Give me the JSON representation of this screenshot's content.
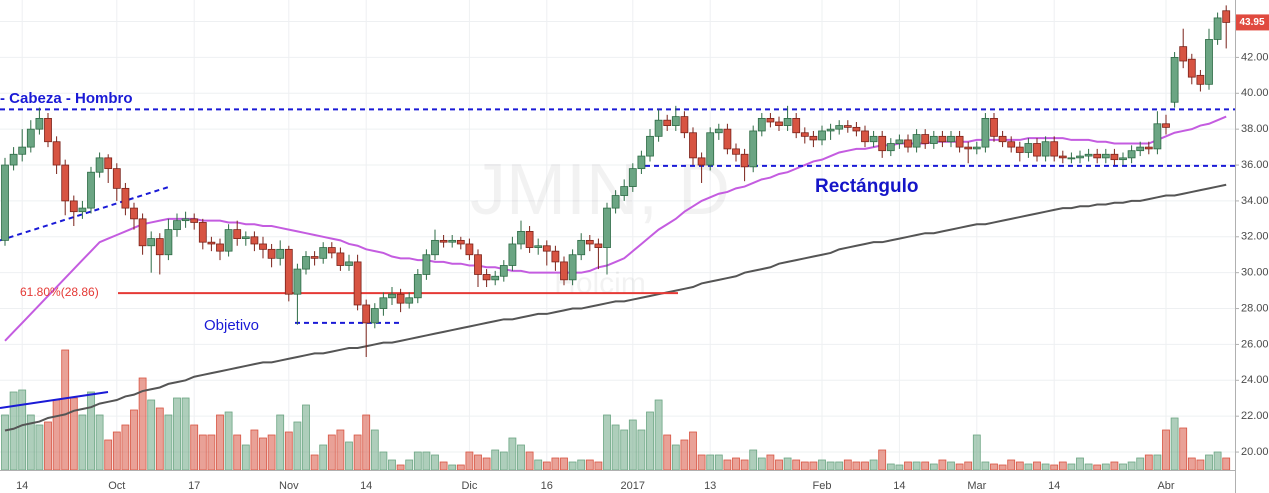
{
  "chart_data": {
    "type": "candlestick",
    "watermark": "JMIN, D",
    "watermark_sub": "Holcim",
    "head_shoulders_label": "- Cabeza - Hombro",
    "rectangle_label": "Rectángulo",
    "target_label": "Objetivo",
    "fib_label": "61.80%(28.86)",
    "last_price": 43.95,
    "up_color": "#6ba583",
    "down_color": "#d75442",
    "ylim": [
      19.0,
      45.2
    ],
    "yticks": [
      {
        "value": 20,
        "label": "20.00"
      },
      {
        "value": 22,
        "label": "22.00"
      },
      {
        "value": 24,
        "label": "24.00"
      },
      {
        "value": 26,
        "label": "26.00"
      },
      {
        "value": 28,
        "label": "28.00"
      },
      {
        "value": 30,
        "label": "30.00"
      },
      {
        "value": 32,
        "label": "32.00"
      },
      {
        "value": 34,
        "label": "34.00"
      },
      {
        "value": 36,
        "label": "36.00"
      },
      {
        "value": 38,
        "label": "38.00"
      },
      {
        "value": 40,
        "label": "40.00"
      },
      {
        "value": 42,
        "label": "42.00"
      },
      {
        "value": 44,
        "label": "44.00"
      }
    ],
    "grid": true,
    "vlim": [
      0,
      130
    ],
    "categories": [
      null,
      null,
      "14",
      null,
      null,
      null,
      null,
      null,
      null,
      null,
      null,
      null,
      null,
      "Oct",
      null,
      null,
      null,
      null,
      null,
      null,
      null,
      null,
      "17",
      null,
      null,
      null,
      null,
      null,
      null,
      null,
      null,
      null,
      null,
      "Nov",
      null,
      null,
      null,
      null,
      null,
      null,
      null,
      null,
      "14",
      null,
      null,
      null,
      null,
      null,
      null,
      null,
      null,
      null,
      null,
      null,
      "Dic",
      null,
      null,
      null,
      null,
      null,
      null,
      null,
      null,
      "16",
      null,
      null,
      null,
      null,
      null,
      null,
      null,
      null,
      null,
      "2017",
      null,
      null,
      null,
      null,
      null,
      null,
      null,
      null,
      "13",
      null,
      null,
      null,
      null,
      null,
      null,
      null,
      null,
      null,
      null,
      null,
      null,
      "Feb",
      null,
      null,
      null,
      null,
      null,
      null,
      null,
      null,
      "14",
      null,
      null,
      null,
      null,
      null,
      null,
      null,
      null,
      "Mar",
      null,
      null,
      null,
      null,
      null,
      null,
      null,
      null,
      "14",
      null,
      null,
      null,
      null,
      null,
      null,
      null,
      null,
      null,
      null,
      null,
      null,
      "Abr",
      null,
      null,
      null,
      null,
      null,
      null,
      null
    ],
    "open": [
      31.8,
      36.0,
      36.6,
      37.0,
      38.0,
      38.6,
      37.3,
      36.0,
      34.0,
      33.4,
      33.6,
      35.6,
      36.4,
      35.8,
      34.7,
      33.6,
      33.0,
      31.5,
      31.9,
      31.0,
      32.4,
      32.9,
      33.0,
      32.8,
      31.7,
      31.6,
      31.2,
      32.4,
      31.9,
      32.0,
      31.6,
      31.3,
      30.8,
      31.3,
      28.8,
      30.2,
      30.9,
      30.8,
      31.4,
      31.1,
      30.4,
      30.6,
      28.2,
      27.2,
      28.0,
      28.6,
      28.8,
      28.3,
      28.6,
      29.9,
      31.0,
      31.8,
      31.7,
      31.8,
      31.6,
      31.0,
      29.9,
      29.6,
      29.8,
      30.4,
      31.6,
      32.3,
      31.4,
      31.5,
      31.2,
      30.6,
      29.6,
      31.0,
      31.8,
      31.6,
      31.4,
      33.6,
      34.3,
      34.8,
      35.8,
      36.5,
      37.6,
      38.5,
      38.2,
      38.7,
      37.8,
      36.4,
      36.0,
      37.8,
      38.0,
      36.9,
      36.6,
      35.9,
      37.9,
      38.6,
      38.4,
      38.2,
      38.6,
      37.8,
      37.6,
      37.4,
      37.9,
      38.0,
      38.2,
      38.1,
      37.9,
      37.3,
      37.6,
      36.8,
      37.2,
      37.4,
      37.0,
      37.7,
      37.2,
      37.6,
      37.3,
      37.6,
      37.0,
      36.9,
      37.0,
      38.6,
      37.6,
      37.3,
      37.0,
      36.7,
      37.2,
      36.5,
      37.3,
      36.5,
      36.4,
      36.4,
      36.5,
      36.6,
      36.4,
      36.6,
      36.3,
      36.4,
      36.8,
      37.0,
      36.9,
      38.3,
      39.5,
      42.6,
      41.9,
      41.0,
      40.5,
      43.0,
      44.6
    ],
    "high": [
      36.4,
      37.0,
      38.0,
      38.5,
      39.2,
      38.9,
      37.6,
      36.3,
      34.3,
      34.0,
      35.9,
      36.7,
      36.6,
      36.1,
      35.0,
      33.9,
      33.3,
      32.3,
      32.2,
      33.0,
      33.3,
      33.4,
      33.3,
      33.0,
      32.0,
      31.9,
      32.7,
      32.9,
      32.3,
      32.3,
      32.0,
      31.6,
      31.8,
      31.5,
      30.5,
      31.2,
      31.2,
      31.7,
      31.7,
      31.4,
      31.0,
      31.0,
      28.5,
      28.3,
      28.9,
      29.2,
      29.1,
      28.9,
      30.2,
      31.3,
      32.4,
      32.1,
      32.1,
      32.0,
      31.9,
      31.3,
      30.2,
      30.1,
      30.7,
      32.0,
      32.9,
      32.6,
      31.9,
      31.8,
      31.5,
      30.9,
      31.3,
      32.2,
      32.1,
      31.9,
      33.9,
      34.6,
      35.2,
      36.1,
      36.8,
      38.0,
      39.1,
      38.8,
      39.3,
      39.0,
      38.1,
      36.7,
      38.1,
      38.3,
      38.3,
      37.2,
      36.9,
      38.2,
      38.9,
      38.9,
      38.7,
      39.3,
      38.9,
      38.1,
      37.9,
      38.2,
      38.3,
      38.5,
      38.5,
      38.4,
      38.2,
      37.9,
      37.9,
      37.5,
      37.7,
      37.7,
      38.0,
      38.0,
      37.9,
      37.9,
      37.9,
      37.9,
      37.3,
      37.3,
      38.9,
      38.9,
      37.9,
      37.6,
      37.3,
      37.5,
      37.5,
      37.6,
      37.6,
      36.8,
      36.7,
      36.8,
      36.9,
      36.9,
      36.9,
      36.9,
      36.7,
      37.1,
      37.3,
      37.3,
      39.0,
      38.8,
      42.3,
      43.6,
      42.2,
      41.3,
      43.6,
      44.5,
      44.9
    ],
    "low": [
      31.5,
      35.7,
      36.2,
      36.7,
      37.7,
      37.0,
      35.5,
      33.2,
      32.6,
      33.0,
      33.3,
      35.3,
      35.0,
      34.0,
      33.2,
      32.4,
      31.0,
      30.0,
      29.9,
      30.7,
      32.0,
      32.5,
      32.4,
      31.3,
      31.2,
      30.7,
      30.9,
      31.5,
      31.5,
      31.2,
      30.8,
      30.3,
      30.4,
      28.4,
      27.1,
      29.9,
      30.4,
      30.5,
      30.8,
      30.1,
      30.1,
      27.9,
      25.3,
      26.9,
      27.6,
      28.2,
      27.8,
      28.0,
      28.3,
      29.6,
      30.7,
      31.4,
      31.4,
      31.3,
      30.7,
      29.2,
      29.2,
      29.3,
      29.5,
      30.1,
      31.3,
      31.1,
      31.0,
      30.4,
      30.1,
      29.3,
      29.3,
      30.7,
      31.2,
      30.2,
      29.9,
      33.3,
      34.0,
      34.5,
      35.5,
      36.2,
      37.3,
      37.9,
      37.9,
      37.5,
      36.0,
      35.0,
      35.7,
      37.4,
      36.6,
      36.2,
      35.1,
      35.6,
      37.6,
      38.1,
      37.9,
      37.9,
      37.5,
      37.2,
      37.0,
      37.1,
      37.4,
      37.7,
      37.8,
      37.6,
      37.0,
      37.0,
      36.4,
      36.5,
      36.9,
      36.7,
      36.7,
      36.9,
      36.9,
      37.0,
      37.0,
      36.7,
      36.1,
      36.6,
      36.7,
      37.3,
      37.0,
      36.7,
      36.2,
      36.4,
      36.2,
      36.2,
      36.2,
      36.1,
      36.1,
      36.1,
      36.2,
      36.1,
      36.1,
      36.0,
      36.0,
      36.1,
      36.5,
      36.6,
      36.6,
      37.7,
      39.2,
      41.4,
      40.5,
      40.1,
      40.2,
      42.7,
      42.5
    ],
    "close": [
      36.0,
      36.6,
      37.0,
      38.0,
      38.6,
      37.3,
      36.0,
      34.0,
      33.4,
      33.6,
      35.6,
      36.4,
      35.8,
      34.7,
      33.6,
      33.0,
      31.5,
      31.9,
      31.0,
      32.4,
      32.9,
      33.0,
      32.8,
      31.7,
      31.6,
      31.2,
      32.4,
      31.9,
      32.0,
      31.6,
      31.3,
      30.8,
      31.3,
      28.8,
      30.2,
      30.9,
      30.8,
      31.4,
      31.1,
      30.4,
      30.6,
      28.2,
      27.2,
      28.0,
      28.6,
      28.8,
      28.3,
      28.6,
      29.9,
      31.0,
      31.8,
      31.7,
      31.8,
      31.6,
      31.0,
      29.9,
      29.6,
      29.8,
      30.4,
      31.6,
      32.3,
      31.4,
      31.5,
      31.2,
      30.6,
      29.6,
      31.0,
      31.8,
      31.6,
      31.4,
      33.6,
      34.3,
      34.8,
      35.8,
      36.5,
      37.6,
      38.5,
      38.2,
      38.7,
      37.8,
      36.4,
      36.0,
      37.8,
      38.0,
      36.9,
      36.6,
      35.9,
      37.9,
      38.6,
      38.4,
      38.2,
      38.6,
      37.8,
      37.6,
      37.4,
      37.9,
      38.0,
      38.2,
      38.1,
      37.9,
      37.3,
      37.6,
      36.8,
      37.2,
      37.4,
      37.0,
      37.7,
      37.2,
      37.6,
      37.3,
      37.6,
      37.0,
      36.9,
      37.0,
      38.6,
      37.6,
      37.3,
      37.0,
      36.7,
      37.2,
      36.5,
      37.3,
      36.5,
      36.4,
      36.4,
      36.5,
      36.6,
      36.4,
      36.6,
      36.3,
      36.4,
      36.8,
      37.0,
      36.9,
      38.3,
      38.1,
      42.0,
      41.8,
      40.9,
      40.5,
      43.0,
      44.2,
      43.95
    ],
    "volume": [
      55,
      78,
      80,
      55,
      45,
      48,
      70,
      120,
      72,
      55,
      78,
      55,
      30,
      38,
      45,
      60,
      92,
      70,
      62,
      55,
      72,
      72,
      45,
      35,
      35,
      55,
      58,
      35,
      25,
      40,
      32,
      35,
      55,
      38,
      48,
      65,
      15,
      25,
      35,
      40,
      28,
      35,
      55,
      40,
      18,
      10,
      5,
      10,
      18,
      18,
      15,
      8,
      5,
      5,
      18,
      15,
      12,
      20,
      18,
      32,
      25,
      18,
      10,
      8,
      12,
      12,
      8,
      10,
      10,
      8,
      55,
      45,
      40,
      50,
      40,
      58,
      70,
      35,
      25,
      30,
      38,
      15,
      15,
      15,
      10,
      12,
      10,
      20,
      12,
      15,
      10,
      12,
      10,
      8,
      8,
      10,
      8,
      8,
      10,
      8,
      8,
      10,
      20,
      6,
      5,
      8,
      8,
      8,
      6,
      10,
      8,
      6,
      8,
      35,
      8,
      6,
      5,
      10,
      8,
      6,
      8,
      6,
      5,
      8,
      6,
      12,
      6,
      5,
      6,
      8,
      6,
      8,
      12,
      15,
      15,
      40,
      52,
      42,
      12,
      10,
      15,
      18,
      12
    ],
    "series": [
      {
        "color": "#c45ce0",
        "values": [
          26.2,
          26.7,
          27.2,
          27.7,
          28.2,
          28.7,
          29.2,
          29.7,
          30.2,
          30.7,
          31.2,
          31.7,
          31.9,
          32.1,
          32.3,
          32.5,
          32.7,
          32.8,
          32.9,
          33.0,
          33.0,
          33.0,
          33.0,
          32.9,
          32.9,
          32.9,
          32.8,
          32.8,
          32.7,
          32.7,
          32.6,
          32.6,
          32.5,
          32.4,
          32.3,
          32.2,
          32.1,
          32.0,
          31.9,
          31.8,
          31.6,
          31.5,
          31.3,
          31.2,
          31.1,
          30.9,
          30.8,
          30.8,
          30.7,
          30.7,
          30.6,
          30.6,
          30.5,
          30.5,
          30.4,
          30.4,
          30.3,
          30.3,
          30.2,
          30.1,
          30.1,
          30.0,
          30.0,
          30.0,
          30.0,
          30.0,
          30.0,
          30.0,
          30.1,
          30.3,
          30.4,
          30.6,
          30.8,
          31.2,
          31.6,
          32.0,
          32.4,
          32.7,
          33.0,
          33.4,
          33.7,
          34.0,
          34.2,
          34.4,
          34.5,
          34.7,
          34.8,
          35.0,
          35.2,
          35.3,
          35.5,
          35.6,
          35.8,
          36.0,
          36.2,
          36.3,
          36.5,
          36.7,
          36.8,
          36.9,
          36.9,
          37.0,
          37.1,
          37.1,
          37.2,
          37.2,
          37.2,
          37.2,
          37.3,
          37.3,
          37.3,
          37.3,
          37.3,
          37.4,
          37.4,
          37.4,
          37.4,
          37.4,
          37.4,
          37.5,
          37.5,
          37.5,
          37.5,
          37.5,
          37.4,
          37.4,
          37.4,
          37.3,
          37.3,
          37.2,
          37.2,
          37.2,
          37.2,
          37.2,
          37.4,
          37.6,
          37.8,
          37.9,
          38.0,
          38.2,
          38.3,
          38.5,
          38.7
        ]
      },
      {
        "color": "#555555",
        "values": [
          21.2,
          21.3,
          21.5,
          21.6,
          21.7,
          21.9,
          22.0,
          22.1,
          22.3,
          22.4,
          22.5,
          22.7,
          22.8,
          22.9,
          23.1,
          23.2,
          23.4,
          23.5,
          23.6,
          23.8,
          23.9,
          24.0,
          24.2,
          24.3,
          24.4,
          24.5,
          24.6,
          24.7,
          24.8,
          24.9,
          25.0,
          25.0,
          25.1,
          25.2,
          25.3,
          25.4,
          25.5,
          25.5,
          25.6,
          25.7,
          25.8,
          25.8,
          25.9,
          26.0,
          26.1,
          26.1,
          26.2,
          26.3,
          26.4,
          26.5,
          26.6,
          26.7,
          26.8,
          26.9,
          27.0,
          27.1,
          27.2,
          27.3,
          27.4,
          27.4,
          27.5,
          27.6,
          27.7,
          27.7,
          27.8,
          27.9,
          28.0,
          28.0,
          28.1,
          28.2,
          28.3,
          28.4,
          28.4,
          28.5,
          28.6,
          28.7,
          28.8,
          28.9,
          29.0,
          29.1,
          29.2,
          29.4,
          29.5,
          29.6,
          29.7,
          29.8,
          30.0,
          30.1,
          30.2,
          30.3,
          30.5,
          30.6,
          30.7,
          30.8,
          30.9,
          31.0,
          31.1,
          31.3,
          31.4,
          31.5,
          31.6,
          31.7,
          31.7,
          31.8,
          31.9,
          32.0,
          32.1,
          32.2,
          32.2,
          32.3,
          32.4,
          32.5,
          32.6,
          32.7,
          32.7,
          32.8,
          32.9,
          33.0,
          33.1,
          33.2,
          33.3,
          33.4,
          33.5,
          33.6,
          33.6,
          33.7,
          33.7,
          33.8,
          33.8,
          33.9,
          33.9,
          34.0,
          34.0,
          34.1,
          34.2,
          34.3,
          34.3,
          34.4,
          34.5,
          34.6,
          34.7,
          34.8,
          34.9
        ]
      }
    ],
    "levels": [
      {
        "value": 39.1,
        "color": "#1a1ad6",
        "dashed": true
      },
      {
        "value": 35.95,
        "color": "#1a1ad6",
        "dashed": true
      },
      {
        "value": 27.2,
        "color": "#1a1ad6",
        "dashed": true
      },
      {
        "value": 28.86,
        "color": "#e53935",
        "dashed": false
      }
    ],
    "trendline": [
      31.8,
      34.8
    ]
  }
}
